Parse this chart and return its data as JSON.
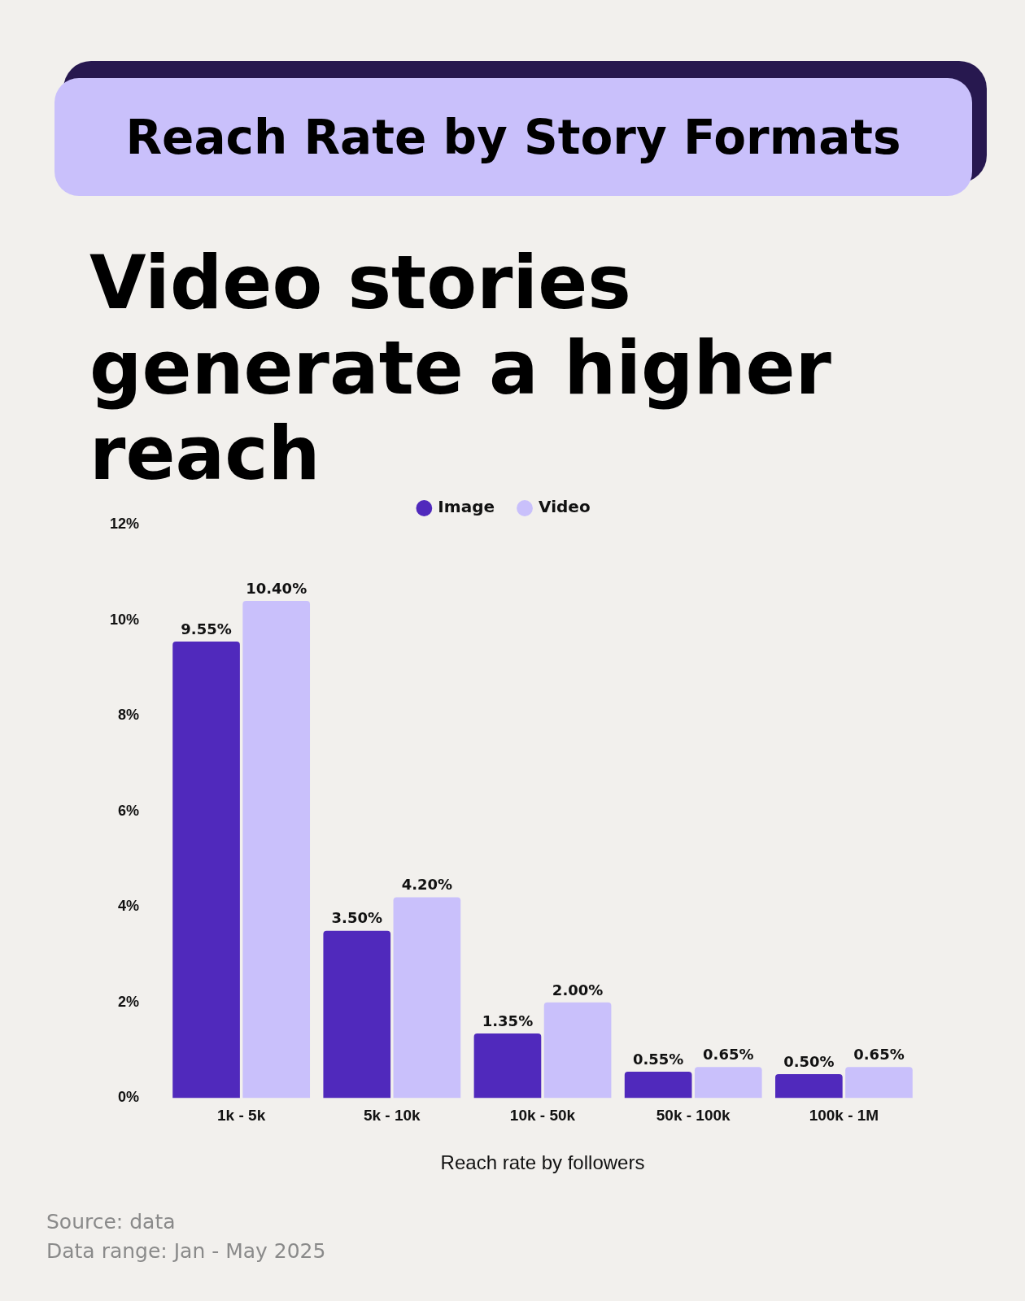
{
  "chart_data": {
    "type": "bar",
    "title": "Reach Rate by Story Formats",
    "subtitle": "Video stories generate a higher reach",
    "xlabel": "Reach rate by followers",
    "categories": [
      "1k - 5k",
      "5k - 10k",
      "10k - 50k",
      "50k - 100k",
      "100k - 1M"
    ],
    "series": [
      {
        "name": "Image",
        "color": "#5029bc",
        "values": [
          9.55,
          3.5,
          1.35,
          0.55,
          0.5
        ],
        "value_labels": [
          "9.55%",
          "3.50%",
          "1.35%",
          "0.55%",
          "0.50%"
        ]
      },
      {
        "name": "Video",
        "color": "#c9c0fb",
        "values": [
          10.4,
          4.2,
          2.0,
          0.65,
          0.65
        ],
        "value_labels": [
          "10.40%",
          "4.20%",
          "2.00%",
          "0.65%",
          "0.65%"
        ]
      }
    ],
    "ylim": [
      0,
      12
    ],
    "yticks": [
      {
        "value": 0,
        "label": "0%"
      },
      {
        "value": 2,
        "label": "2%"
      },
      {
        "value": 4,
        "label": "4%"
      },
      {
        "value": 6,
        "label": "6%"
      },
      {
        "value": 8,
        "label": "8%"
      },
      {
        "value": 10,
        "label": "10%"
      },
      {
        "value": 12,
        "label": "12%"
      }
    ],
    "grid": false,
    "legend": "top",
    "marker": "circle",
    "annotations": [
      "Source: data",
      "Data range: Jan - May 2025"
    ]
  }
}
